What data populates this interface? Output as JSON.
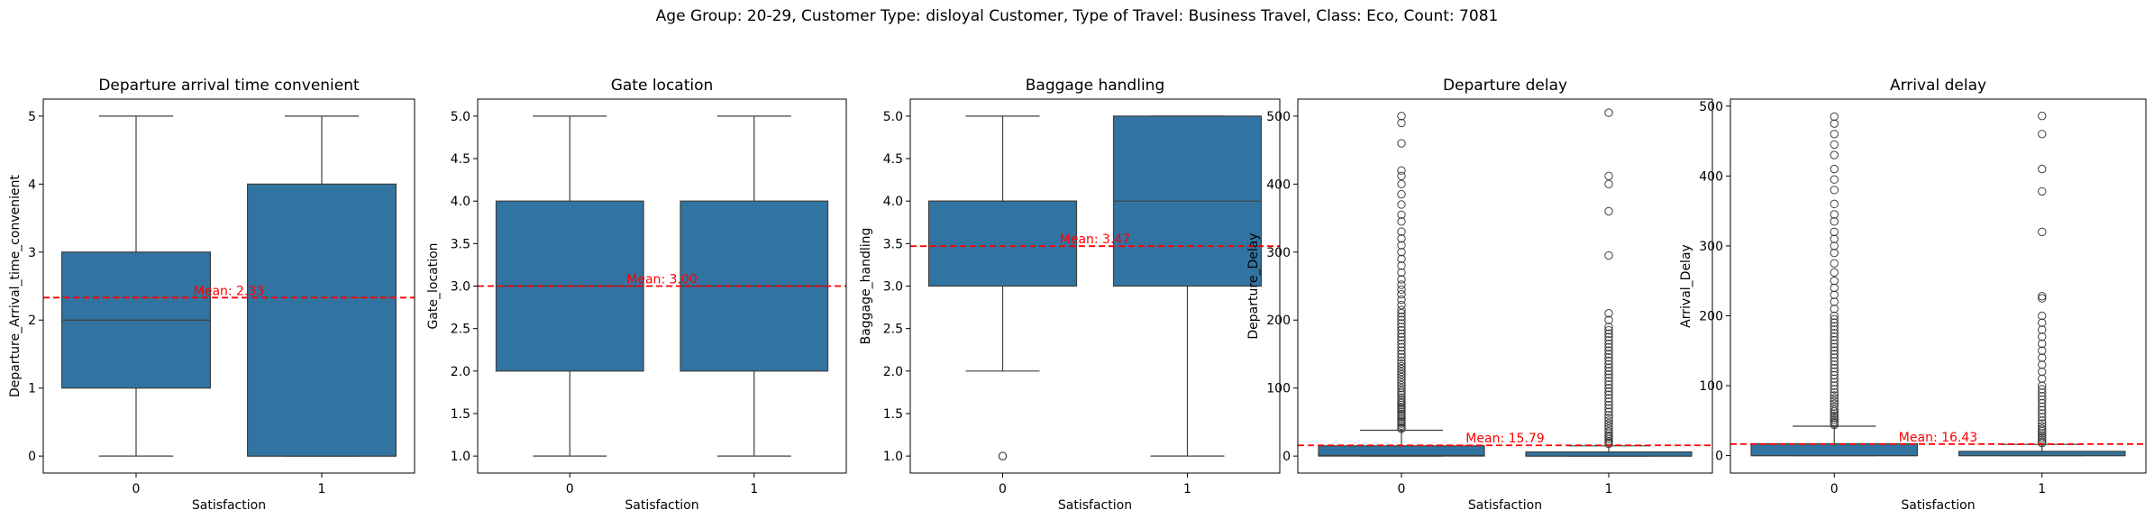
{
  "figure": {
    "suptitle": "Age Group: 20-29, Customer Type: disloyal Customer, Type of Travel: Business Travel, Class: Eco, Count: 7081"
  },
  "colors": {
    "box_fill": "#3274a1",
    "box_edge": "#3f3f3f",
    "mean_line": "#ff0000",
    "frame": "#000000"
  },
  "chart_data": [
    {
      "type": "box",
      "title": "Departure arrival time convenient",
      "xlabel": "Satisfaction",
      "ylabel": "Departure_Arrival_time_convenient",
      "categories": [
        "0",
        "1"
      ],
      "ylim": [
        -0.25,
        5.25
      ],
      "yticks": [
        0,
        1,
        2,
        3,
        4,
        5
      ],
      "ytick_labels": [
        "0",
        "1",
        "2",
        "3",
        "4",
        "5"
      ],
      "boxes": [
        {
          "category": "0",
          "whislo": 0,
          "q1": 1,
          "median": 2,
          "q3": 3,
          "whishi": 5,
          "fliers": []
        },
        {
          "category": "1",
          "whislo": 0,
          "q1": 0,
          "median": 0,
          "q3": 4,
          "whishi": 5,
          "fliers": []
        }
      ],
      "mean": 2.33,
      "mean_label": "Mean: 2.33"
    },
    {
      "type": "box",
      "title": "Gate location",
      "xlabel": "Satisfaction",
      "ylabel": "Gate_location",
      "categories": [
        "0",
        "1"
      ],
      "ylim": [
        0.8,
        5.2
      ],
      "yticks": [
        1.0,
        1.5,
        2.0,
        2.5,
        3.0,
        3.5,
        4.0,
        4.5,
        5.0
      ],
      "ytick_labels": [
        "1.0",
        "1.5",
        "2.0",
        "2.5",
        "3.0",
        "3.5",
        "4.0",
        "4.5",
        "5.0"
      ],
      "boxes": [
        {
          "category": "0",
          "whislo": 1,
          "q1": 2,
          "median": 3,
          "q3": 4,
          "whishi": 5,
          "fliers": []
        },
        {
          "category": "1",
          "whislo": 1,
          "q1": 2,
          "median": 3,
          "q3": 4,
          "whishi": 5,
          "fliers": []
        }
      ],
      "mean": 3.0,
      "mean_label": "Mean: 3.00"
    },
    {
      "type": "box",
      "title": "Baggage handling",
      "xlabel": "Satisfaction",
      "ylabel": "Baggage_handling",
      "categories": [
        "0",
        "1"
      ],
      "ylim": [
        0.8,
        5.2
      ],
      "yticks": [
        1.0,
        1.5,
        2.0,
        2.5,
        3.0,
        3.5,
        4.0,
        4.5,
        5.0
      ],
      "ytick_labels": [
        "1.0",
        "1.5",
        "2.0",
        "2.5",
        "3.0",
        "3.5",
        "4.0",
        "4.5",
        "5.0"
      ],
      "boxes": [
        {
          "category": "0",
          "whislo": 2,
          "q1": 3,
          "median": 4,
          "q3": 4,
          "whishi": 5,
          "fliers": [
            1,
            1
          ]
        },
        {
          "category": "1",
          "whislo": 1,
          "q1": 3,
          "median": 4,
          "q3": 5,
          "whishi": 5,
          "fliers": []
        }
      ],
      "mean": 3.47,
      "mean_label": "Mean: 3.47"
    },
    {
      "type": "box",
      "title": "Departure delay",
      "xlabel": "Satisfaction",
      "ylabel": "Departure_Delay",
      "categories": [
        "0",
        "1"
      ],
      "ylim": [
        -25,
        525
      ],
      "yticks": [
        0,
        100,
        200,
        300,
        400,
        500
      ],
      "ytick_labels": [
        "0",
        "100",
        "200",
        "300",
        "400",
        "500"
      ],
      "boxes": [
        {
          "category": "0",
          "whislo": 0,
          "q1": 0,
          "median": 1,
          "q3": 15,
          "whishi": 38,
          "fliers": [
            40,
            42,
            45,
            48,
            50,
            52,
            55,
            58,
            60,
            62,
            65,
            68,
            70,
            72,
            75,
            78,
            80,
            83,
            86,
            90,
            93,
            96,
            100,
            104,
            108,
            112,
            116,
            120,
            124,
            128,
            132,
            136,
            140,
            145,
            150,
            155,
            160,
            165,
            170,
            175,
            180,
            185,
            190,
            195,
            200,
            205,
            210,
            215,
            222,
            230,
            238,
            245,
            252,
            260,
            270,
            280,
            290,
            300,
            310,
            320,
            330,
            345,
            355,
            370,
            385,
            400,
            412,
            420,
            460,
            490,
            500
          ]
        },
        {
          "category": "1",
          "whislo": 0,
          "q1": 0,
          "median": 0,
          "q3": 6,
          "whishi": 15,
          "fliers": [
            18,
            20,
            22,
            25,
            28,
            30,
            33,
            36,
            40,
            44,
            48,
            52,
            56,
            60,
            65,
            70,
            75,
            80,
            85,
            90,
            95,
            100,
            105,
            110,
            115,
            120,
            125,
            130,
            135,
            140,
            145,
            150,
            155,
            160,
            165,
            170,
            175,
            180,
            185,
            190,
            200,
            210,
            295,
            360,
            400,
            412,
            505
          ]
        }
      ],
      "mean": 15.79,
      "mean_label": "Mean: 15.79"
    },
    {
      "type": "box",
      "title": "Arrival delay",
      "xlabel": "Satisfaction",
      "ylabel": "Arrival_Delay",
      "categories": [
        "0",
        "1"
      ],
      "ylim": [
        -25,
        510
      ],
      "yticks": [
        0,
        100,
        200,
        300,
        400,
        500
      ],
      "ytick_labels": [
        "0",
        "100",
        "200",
        "300",
        "400",
        "500"
      ],
      "boxes": [
        {
          "category": "0",
          "whislo": 0,
          "q1": 0,
          "median": 0,
          "q3": 17,
          "whishi": 42,
          "fliers": [
            44,
            46,
            48,
            51,
            54,
            57,
            60,
            63,
            66,
            70,
            74,
            78,
            82,
            86,
            90,
            95,
            100,
            105,
            110,
            115,
            120,
            125,
            130,
            135,
            140,
            145,
            150,
            155,
            160,
            165,
            170,
            175,
            180,
            185,
            190,
            195,
            200,
            210,
            220,
            230,
            240,
            250,
            262,
            275,
            290,
            300,
            310,
            320,
            335,
            345,
            360,
            380,
            395,
            410,
            430,
            445,
            460,
            475,
            485
          ]
        },
        {
          "category": "1",
          "whislo": 0,
          "q1": 0,
          "median": 0,
          "q3": 6,
          "whishi": 16,
          "fliers": [
            18,
            20,
            23,
            26,
            29,
            32,
            35,
            38,
            42,
            46,
            50,
            55,
            60,
            65,
            70,
            75,
            80,
            85,
            90,
            95,
            100,
            110,
            120,
            130,
            140,
            150,
            160,
            170,
            180,
            190,
            200,
            225,
            228,
            320,
            378,
            410,
            460,
            486
          ]
        }
      ],
      "mean": 16.43,
      "mean_label": "Mean: 16.43"
    }
  ]
}
